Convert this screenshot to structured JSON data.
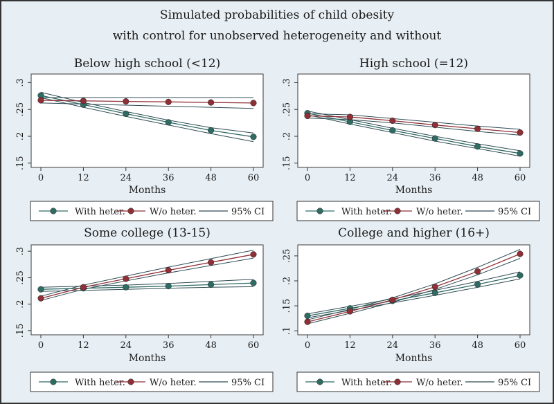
{
  "chart_data": {
    "type": "line",
    "title": [
      "Simulated probabilities of child obesity",
      "with control for unobserved heterogeneity and without"
    ],
    "legend": [
      "With heter.",
      "W/o heter.",
      "95% CI"
    ],
    "xlabel": "Months",
    "x": [
      0,
      12,
      24,
      36,
      48,
      60
    ],
    "x_tick_labels": [
      "0",
      "12",
      "24",
      "36",
      "48",
      "60"
    ],
    "xlim": [
      0,
      60
    ],
    "colors": {
      "with": "#2e6b63",
      "without": "#8f2f36",
      "ci": "#2e4a53"
    },
    "panels": [
      {
        "title": "Below high school (<12)",
        "ylim": [
          0.142,
          0.316
        ],
        "y_ticks": [
          0.15,
          0.2,
          0.25,
          0.3
        ],
        "y_tick_labels": [
          ".15",
          ".2",
          ".25",
          ".3"
        ],
        "series": [
          {
            "name": "With heter.",
            "values": [
              0.276,
              0.259,
              0.242,
              0.226,
              0.211,
              0.199
            ],
            "ci_low": [
              0.272,
              0.254,
              0.237,
              0.221,
              0.205,
              0.19
            ],
            "ci_high": [
              0.282,
              0.263,
              0.246,
              0.23,
              0.216,
              0.206
            ]
          },
          {
            "name": "W/o heter.",
            "values": [
              0.267,
              0.266,
              0.265,
              0.264,
              0.263,
              0.262
            ],
            "ci_low": [
              0.262,
              0.26,
              0.258,
              0.256,
              0.254,
              0.252
            ],
            "ci_high": [
              0.272,
              0.272,
              0.272,
              0.272,
              0.272,
              0.272
            ]
          }
        ]
      },
      {
        "title": "High school (=12)",
        "ylim": [
          0.142,
          0.316
        ],
        "y_ticks": [
          0.15,
          0.2,
          0.25,
          0.3
        ],
        "y_tick_labels": [
          ".15",
          ".2",
          ".25",
          ".3"
        ],
        "series": [
          {
            "name": "With heter.",
            "values": [
              0.243,
              0.227,
              0.211,
              0.196,
              0.181,
              0.168
            ],
            "ci_low": [
              0.24,
              0.223,
              0.207,
              0.191,
              0.177,
              0.163
            ],
            "ci_high": [
              0.247,
              0.231,
              0.215,
              0.2,
              0.186,
              0.173
            ]
          },
          {
            "name": "W/o heter.",
            "values": [
              0.238,
              0.236,
              0.229,
              0.221,
              0.214,
              0.207
            ],
            "ci_low": [
              0.234,
              0.231,
              0.225,
              0.217,
              0.209,
              0.202
            ],
            "ci_high": [
              0.242,
              0.24,
              0.233,
              0.226,
              0.219,
              0.213
            ]
          }
        ]
      },
      {
        "title": "Some college (13-15)",
        "ylim": [
          0.142,
          0.312
        ],
        "y_ticks": [
          0.15,
          0.2,
          0.25,
          0.3
        ],
        "y_tick_labels": [
          ".15",
          ".2",
          ".25",
          ".3"
        ],
        "series": [
          {
            "name": "With heter.",
            "values": [
              0.228,
              0.23,
              0.232,
              0.234,
              0.237,
              0.24
            ],
            "ci_low": [
              0.224,
              0.226,
              0.228,
              0.23,
              0.232,
              0.233
            ],
            "ci_high": [
              0.232,
              0.234,
              0.236,
              0.239,
              0.243,
              0.247
            ]
          },
          {
            "name": "W/o heter.",
            "values": [
              0.211,
              0.232,
              0.248,
              0.264,
              0.279,
              0.294
            ],
            "ci_low": [
              0.207,
              0.228,
              0.244,
              0.259,
              0.273,
              0.287
            ],
            "ci_high": [
              0.215,
              0.236,
              0.253,
              0.27,
              0.286,
              0.302
            ]
          }
        ]
      },
      {
        "title": "College and higher (16+)",
        "ylim": [
          0.092,
          0.272
        ],
        "y_ticks": [
          0.1,
          0.15,
          0.2,
          0.25
        ],
        "y_tick_labels": [
          ".1",
          ".15",
          ".2",
          ".25"
        ],
        "series": [
          {
            "name": "With heter.",
            "values": [
              0.13,
              0.145,
              0.16,
              0.176,
              0.193,
              0.211
            ],
            "ci_low": [
              0.126,
              0.141,
              0.156,
              0.171,
              0.187,
              0.204
            ],
            "ci_high": [
              0.134,
              0.149,
              0.164,
              0.181,
              0.199,
              0.218
            ]
          },
          {
            "name": "W/o heter.",
            "values": [
              0.118,
              0.139,
              0.162,
              0.188,
              0.219,
              0.254
            ],
            "ci_low": [
              0.114,
              0.135,
              0.157,
              0.183,
              0.212,
              0.245
            ],
            "ci_high": [
              0.122,
              0.143,
              0.166,
              0.194,
              0.227,
              0.263
            ]
          }
        ]
      }
    ]
  }
}
